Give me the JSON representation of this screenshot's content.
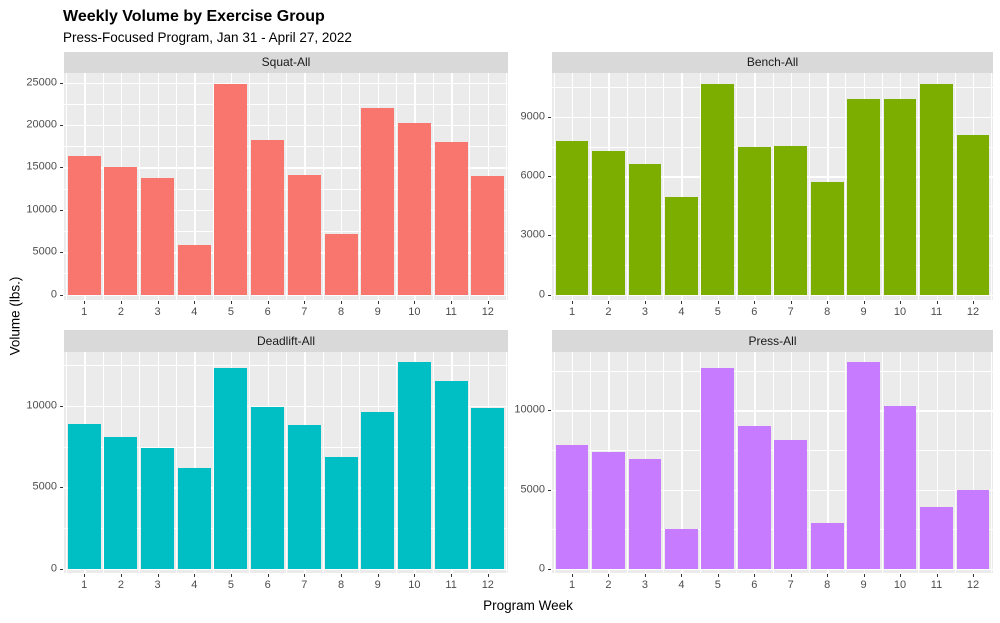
{
  "chart_data": {
    "type": "bar",
    "title": "Weekly Volume by Exercise Group",
    "subtitle": "Press-Focused Program, Jan 31 - April 27, 2022",
    "xlabel": "Program Week",
    "ylabel": "Volume (lbs.)",
    "categories": [
      "1",
      "2",
      "3",
      "4",
      "5",
      "6",
      "7",
      "8",
      "9",
      "10",
      "11",
      "12"
    ],
    "layout": "2x2 facet grid, ggplot style, free y scales",
    "grid": true,
    "panel_bg": "#ebebeb",
    "strip_bg": "#d9d9d9",
    "facets": [
      {
        "name": "Squat-All",
        "color": "#F8766D",
        "y_ticks": [
          0,
          5000,
          10000,
          15000,
          20000,
          25000
        ],
        "major_step": 5000,
        "values": [
          16350,
          15000,
          13800,
          5800,
          24900,
          18200,
          14150,
          7100,
          22050,
          20200,
          18050,
          13950
        ]
      },
      {
        "name": "Bench-All",
        "color": "#7CAE00",
        "y_ticks": [
          0,
          3000,
          6000,
          9000
        ],
        "major_step": 3000,
        "values": [
          7800,
          7300,
          6600,
          4950,
          10700,
          7500,
          7550,
          5700,
          9900,
          9900,
          10700,
          8100
        ]
      },
      {
        "name": "Deadlift-All",
        "color": "#00BFC4",
        "y_ticks": [
          0,
          5000,
          10000
        ],
        "major_step": 5000,
        "values": [
          8900,
          8100,
          7400,
          6200,
          12300,
          9950,
          8800,
          6850,
          9600,
          12700,
          11550,
          9900
        ]
      },
      {
        "name": "Press-All",
        "color": "#C77CFF",
        "y_ticks": [
          0,
          5000,
          10000
        ],
        "major_step": 5000,
        "values": [
          7800,
          7350,
          6900,
          2550,
          12650,
          9000,
          8150,
          2900,
          13050,
          10250,
          3900,
          4950
        ]
      }
    ]
  }
}
